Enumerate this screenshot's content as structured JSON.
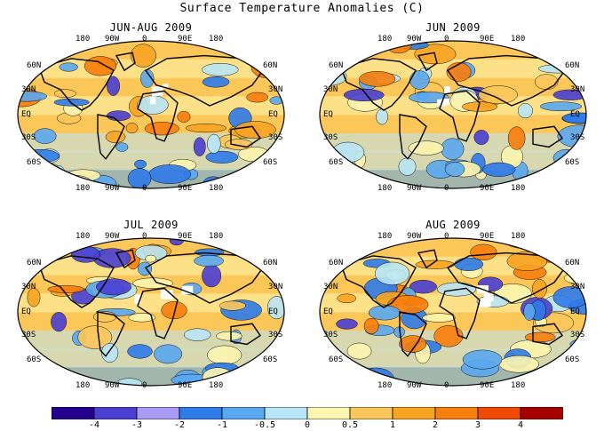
{
  "title": "Surface Temperature Anomalies (C)",
  "panels": [
    {
      "label": "JUN-AUG 2009"
    },
    {
      "label": "JUN 2009"
    },
    {
      "label": "JUL 2009"
    },
    {
      "label": "AUG 2009"
    }
  ],
  "lon_labels": [
    "180",
    "90W",
    "0",
    "90E",
    "180"
  ],
  "lat_labels_left": [
    "60N",
    "30N",
    "EQ",
    "30S",
    "60S"
  ],
  "lat_labels_right": [
    "60N",
    "30N",
    "EQ",
    "30S",
    "60S"
  ],
  "colorbar": {
    "colors": [
      "#24008f",
      "#4a3fd1",
      "#a89af5",
      "#2f7be8",
      "#5aa8f0",
      "#b9e6f7",
      "#fdf6b0",
      "#fcc75a",
      "#f8a423",
      "#f87e0d",
      "#f04a05",
      "#a40000"
    ],
    "tick_labels": [
      "-4",
      "-3",
      "-2",
      "-1",
      "-0.5",
      "0",
      "0.5",
      "1",
      "2",
      "3",
      "4"
    ]
  }
}
